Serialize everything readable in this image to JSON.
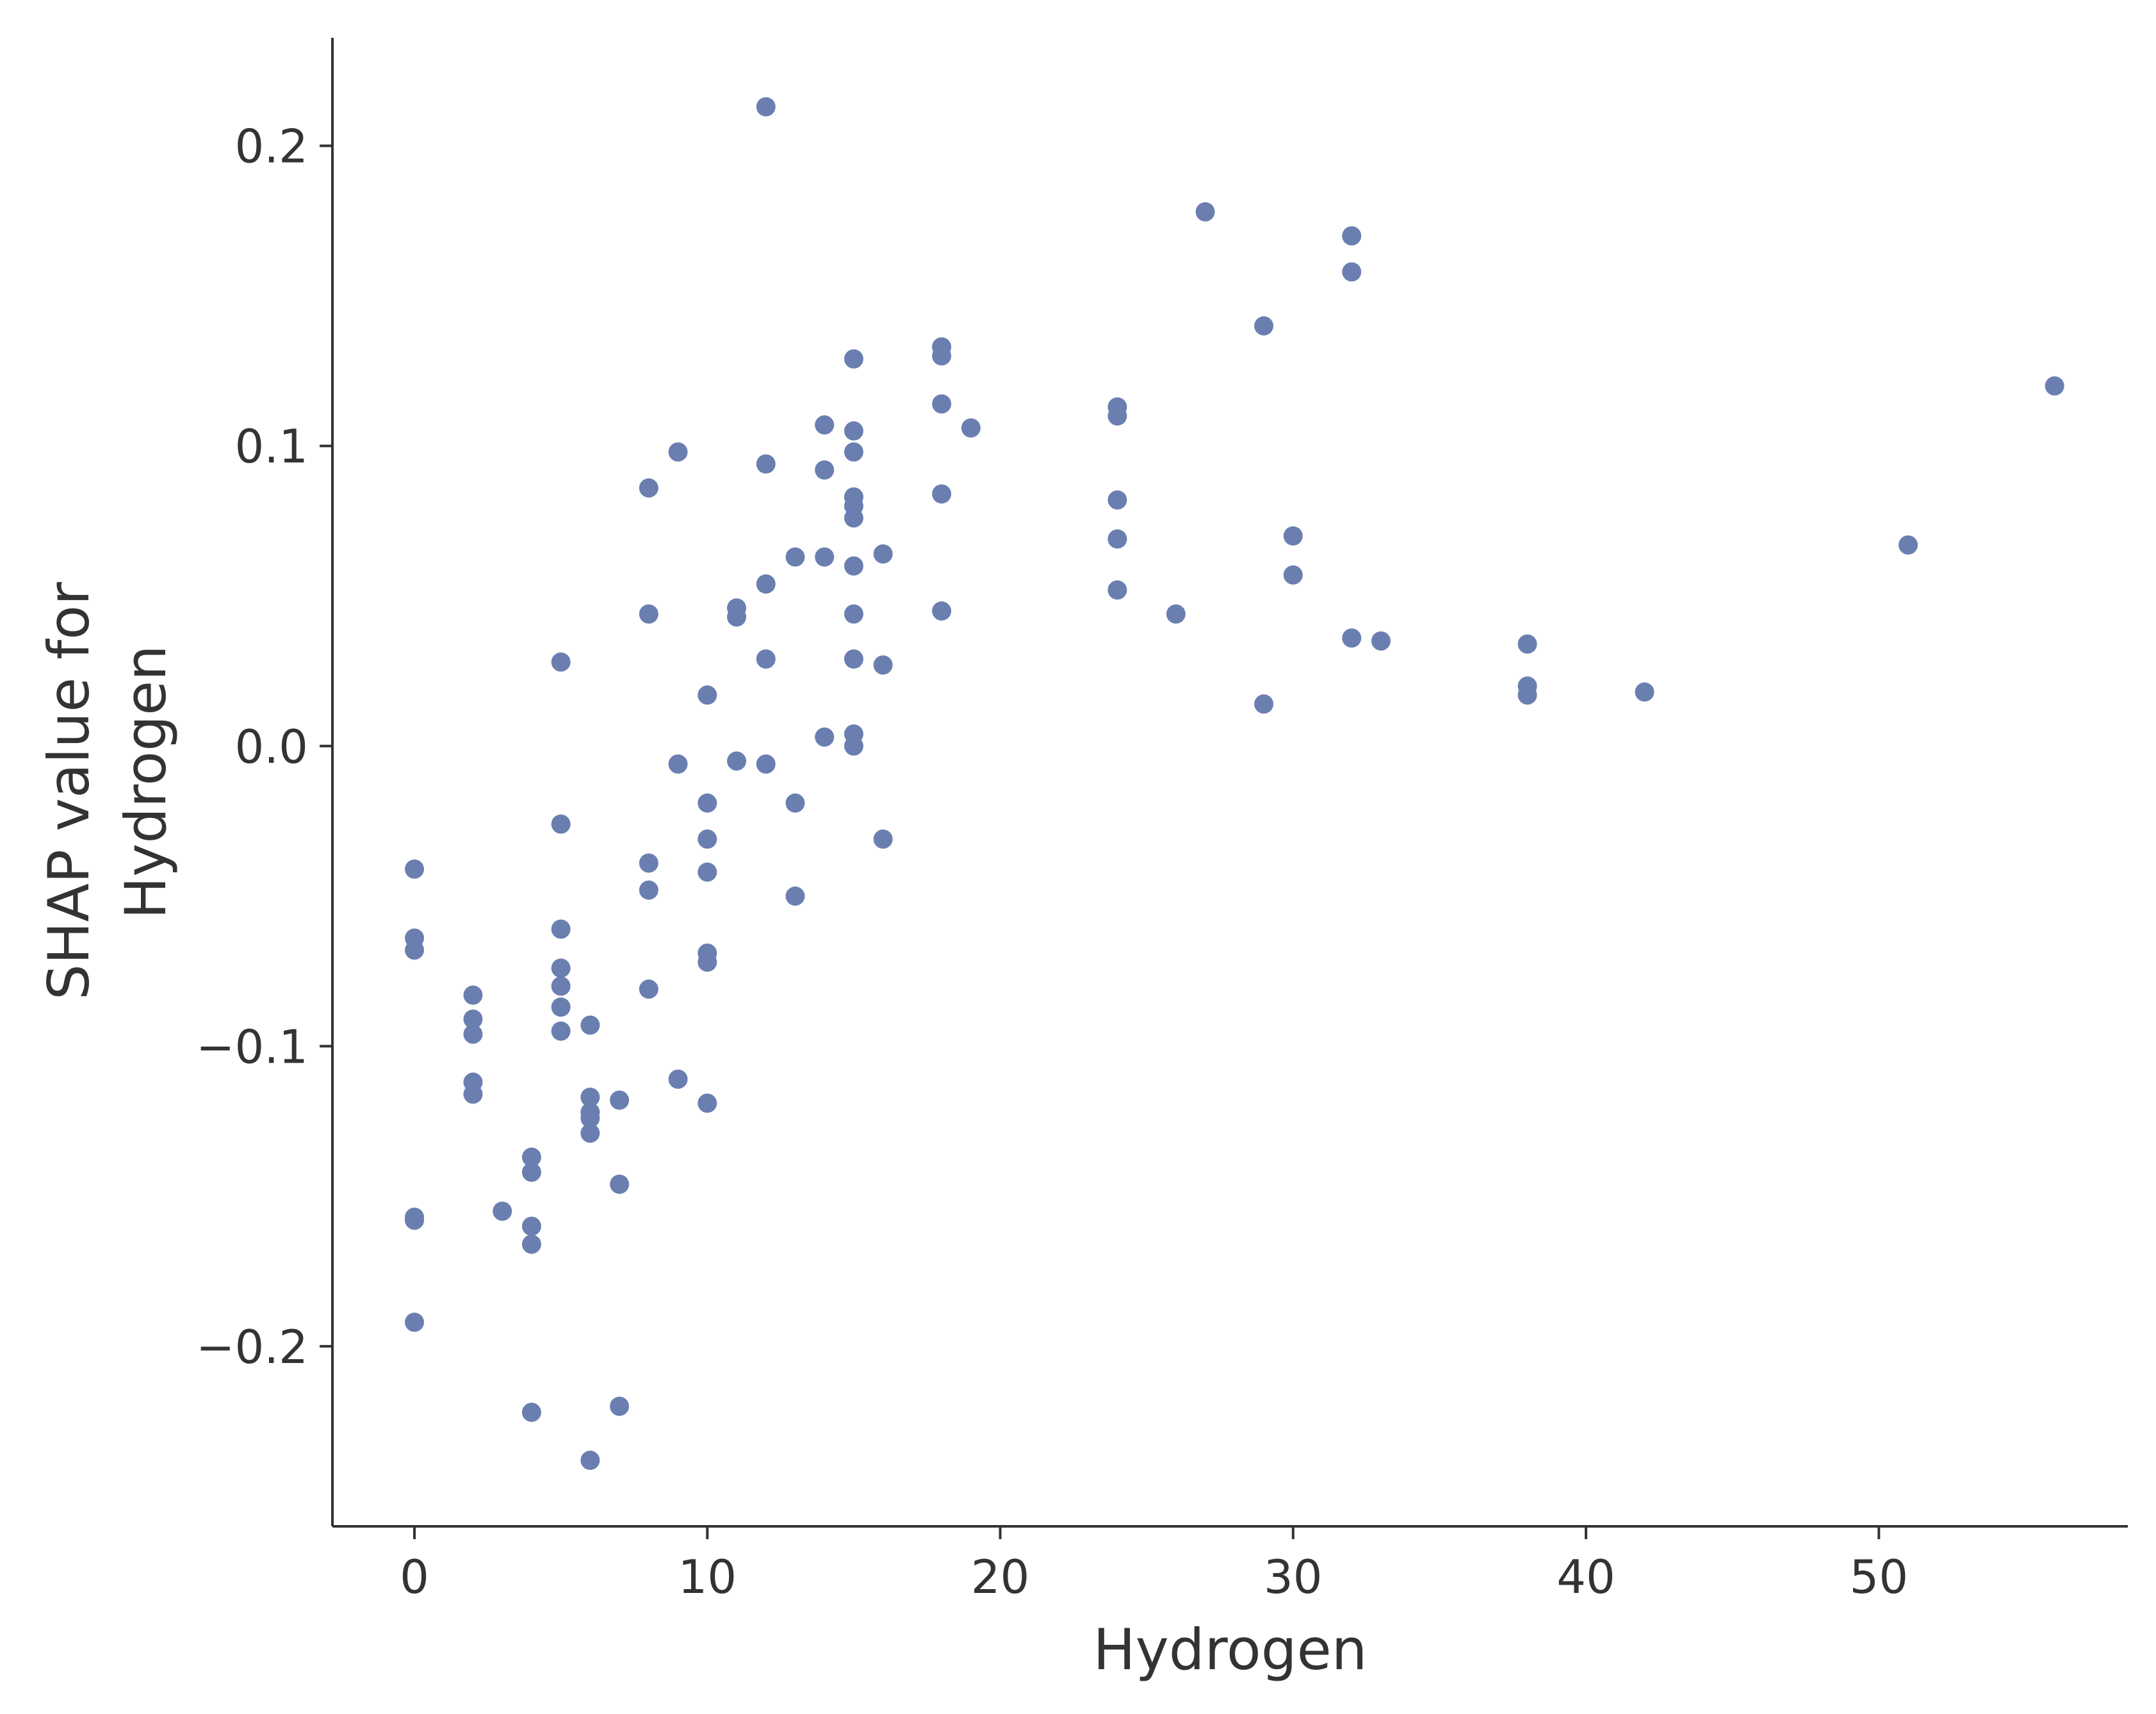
{
  "chart_data": {
    "type": "scatter",
    "title": "",
    "xlabel": "Hydrogen",
    "ylabel_lines": [
      "SHAP value for",
      "Hydrogen"
    ],
    "xlim": [
      -2.8,
      58.5
    ],
    "ylim": [
      -0.26,
      0.236
    ],
    "xticks": [
      0,
      10,
      20,
      30,
      40,
      50
    ],
    "xtick_labels": [
      "0",
      "10",
      "20",
      "30",
      "40",
      "50"
    ],
    "yticks": [
      -0.2,
      -0.1,
      0.0,
      0.1,
      0.2
    ],
    "ytick_labels": [
      "−0.2",
      "−0.1",
      "0.0",
      "0.1",
      "0.2"
    ],
    "grid": false,
    "legend": "none",
    "marker_color": "#6a7fb0",
    "axis_color": "#333333",
    "points": [
      [
        0,
        -0.041
      ],
      [
        0,
        -0.064
      ],
      [
        0,
        -0.068
      ],
      [
        0,
        -0.157
      ],
      [
        0,
        -0.158
      ],
      [
        0,
        -0.192
      ],
      [
        2,
        -0.083
      ],
      [
        2,
        -0.091
      ],
      [
        2,
        -0.096
      ],
      [
        2,
        -0.112
      ],
      [
        2,
        -0.116
      ],
      [
        3,
        -0.155
      ],
      [
        4,
        -0.137
      ],
      [
        4,
        -0.142
      ],
      [
        4,
        -0.16
      ],
      [
        4,
        -0.166
      ],
      [
        4,
        -0.222
      ],
      [
        5,
        0.028
      ],
      [
        5,
        -0.026
      ],
      [
        5,
        -0.061
      ],
      [
        5,
        -0.074
      ],
      [
        5,
        -0.08
      ],
      [
        5,
        -0.087
      ],
      [
        5,
        -0.095
      ],
      [
        6,
        -0.093
      ],
      [
        6,
        -0.117
      ],
      [
        6,
        -0.122
      ],
      [
        6,
        -0.124
      ],
      [
        6,
        -0.129
      ],
      [
        6,
        -0.238
      ],
      [
        7,
        -0.118
      ],
      [
        7,
        -0.146
      ],
      [
        7,
        -0.22
      ],
      [
        8,
        0.086
      ],
      [
        8,
        0.044
      ],
      [
        8,
        -0.039
      ],
      [
        8,
        -0.048
      ],
      [
        8,
        -0.081
      ],
      [
        9,
        0.098
      ],
      [
        9,
        -0.006
      ],
      [
        9,
        -0.111
      ],
      [
        10,
        0.017
      ],
      [
        10,
        -0.019
      ],
      [
        10,
        -0.031
      ],
      [
        10,
        -0.042
      ],
      [
        10,
        -0.069
      ],
      [
        10,
        -0.072
      ],
      [
        10,
        -0.119
      ],
      [
        11,
        0.046
      ],
      [
        11,
        0.043
      ],
      [
        11,
        -0.005
      ],
      [
        12,
        0.213
      ],
      [
        12,
        0.094
      ],
      [
        12,
        0.054
      ],
      [
        12,
        0.029
      ],
      [
        12,
        -0.006
      ],
      [
        13,
        0.063
      ],
      [
        13,
        -0.019
      ],
      [
        13,
        -0.05
      ],
      [
        14,
        0.107
      ],
      [
        14,
        0.092
      ],
      [
        14,
        0.063
      ],
      [
        14,
        0.003
      ],
      [
        15,
        0.129
      ],
      [
        15,
        0.105
      ],
      [
        15,
        0.098
      ],
      [
        15,
        0.083
      ],
      [
        15,
        0.08
      ],
      [
        15,
        0.076
      ],
      [
        15,
        0.06
      ],
      [
        15,
        0.044
      ],
      [
        15,
        0.029
      ],
      [
        15,
        0.004
      ],
      [
        15,
        0.0
      ],
      [
        16,
        0.064
      ],
      [
        16,
        0.027
      ],
      [
        16,
        -0.031
      ],
      [
        18,
        0.133
      ],
      [
        18,
        0.13
      ],
      [
        18,
        0.114
      ],
      [
        18,
        0.084
      ],
      [
        18,
        0.045
      ],
      [
        19,
        0.106
      ],
      [
        24,
        0.113
      ],
      [
        24,
        0.11
      ],
      [
        24,
        0.082
      ],
      [
        24,
        0.069
      ],
      [
        24,
        0.052
      ],
      [
        26,
        0.044
      ],
      [
        27,
        0.178
      ],
      [
        29,
        0.14
      ],
      [
        29,
        0.014
      ],
      [
        30,
        0.07
      ],
      [
        30,
        0.057
      ],
      [
        32,
        0.17
      ],
      [
        32,
        0.158
      ],
      [
        32,
        0.036
      ],
      [
        33,
        0.035
      ],
      [
        38,
        0.034
      ],
      [
        38,
        0.02
      ],
      [
        38,
        0.017
      ],
      [
        42,
        0.018
      ],
      [
        51,
        0.067
      ],
      [
        56,
        0.12
      ]
    ]
  }
}
